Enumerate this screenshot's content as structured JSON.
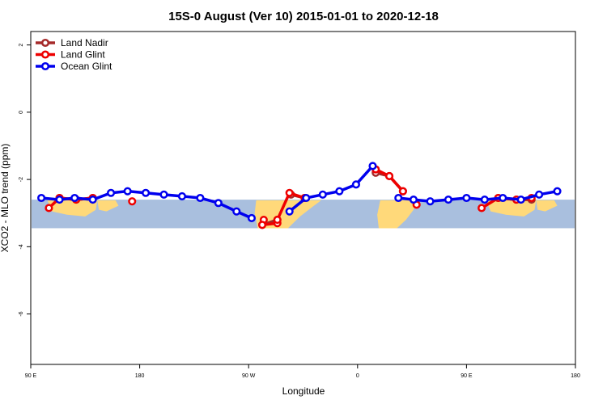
{
  "chart_data": {
    "type": "line",
    "title": "15S-0 August (Ver 10)   2015-01-01 to 2020-12-18",
    "xlabel": "Longitude",
    "ylabel": "XCO2 - MLO trend (ppm)",
    "xlim": [
      90,
      450
    ],
    "ylim": [
      -7.5,
      2.4
    ],
    "x_ticks": [
      {
        "value": 90,
        "label": "90 E"
      },
      {
        "value": 162,
        "label": "180"
      },
      {
        "value": 234,
        "label": "90 W"
      },
      {
        "value": 306,
        "label": "0"
      },
      {
        "value": 378,
        "label": "90 E"
      },
      {
        "value": 450,
        "label": "180"
      }
    ],
    "y_ticks": [
      {
        "value": 2,
        "label": "2"
      },
      {
        "value": 0,
        "label": "0"
      },
      {
        "value": -2,
        "label": "-2"
      },
      {
        "value": -4,
        "label": "-4"
      },
      {
        "value": -6,
        "label": "-6"
      }
    ],
    "legend_position": "top-left",
    "map_band": {
      "ylim": [
        -3.45,
        -2.6
      ]
    },
    "series": [
      {
        "name": "Land Nadir",
        "color": "#a52a2a",
        "segments": [
          [
            [
              109,
              -2.55
            ],
            [
              120,
              -2.6
            ],
            [
              131,
              -2.55
            ]
          ],
          [
            [
              243,
              -3.35
            ],
            [
              253,
              -3.2
            ]
          ],
          [
            [
              262,
              -2.45
            ],
            [
              271,
              -2.55
            ]
          ],
          [
            [
              318,
              -1.8
            ],
            [
              327,
              -1.9
            ],
            [
              336,
              -2.35
            ]
          ],
          [
            [
              399,
              -2.55
            ],
            [
              411,
              -2.6
            ],
            [
              421,
              -2.6
            ]
          ]
        ]
      },
      {
        "name": "Land Glint",
        "color": "#ee0000",
        "segments": [
          [
            [
              102,
              -2.85
            ],
            [
              109,
              -2.55
            ],
            [
              120,
              -2.6
            ],
            [
              131,
              -2.55
            ]
          ],
          [
            [
              157,
              -2.65
            ]
          ],
          [
            [
              244,
              -3.2
            ],
            [
              243,
              -3.35
            ],
            [
              253,
              -3.3
            ],
            [
              253,
              -3.2
            ],
            [
              261,
              -2.4
            ],
            [
              271,
              -2.55
            ]
          ],
          [
            [
              318,
              -1.7
            ],
            [
              327,
              -1.9
            ],
            [
              336,
              -2.35
            ]
          ],
          [
            [
              345,
              -2.75
            ]
          ],
          [
            [
              388,
              -2.85
            ],
            [
              399,
              -2.55
            ],
            [
              411,
              -2.6
            ],
            [
              421,
              -2.55
            ]
          ]
        ]
      },
      {
        "name": "Ocean Glint",
        "color": "#0000ee",
        "segments": [
          [
            [
              97,
              -2.55
            ],
            [
              109,
              -2.6
            ],
            [
              119,
              -2.55
            ],
            [
              131,
              -2.6
            ],
            [
              143,
              -2.4
            ],
            [
              154,
              -2.35
            ],
            [
              166,
              -2.4
            ],
            [
              178,
              -2.45
            ],
            [
              190,
              -2.5
            ],
            [
              202,
              -2.55
            ],
            [
              214,
              -2.7
            ],
            [
              226,
              -2.95
            ],
            [
              236,
              -3.15
            ]
          ],
          [
            [
              261,
              -2.95
            ],
            [
              272,
              -2.55
            ],
            [
              283,
              -2.45
            ],
            [
              294,
              -2.35
            ],
            [
              305,
              -2.15
            ],
            [
              316,
              -1.6
            ]
          ],
          [
            [
              333,
              -2.55
            ],
            [
              343,
              -2.6
            ],
            [
              354,
              -2.65
            ],
            [
              366,
              -2.6
            ],
            [
              378,
              -2.55
            ],
            [
              390,
              -2.6
            ],
            [
              402,
              -2.55
            ],
            [
              414,
              -2.6
            ],
            [
              426,
              -2.45
            ],
            [
              438,
              -2.35
            ]
          ]
        ]
      }
    ]
  }
}
